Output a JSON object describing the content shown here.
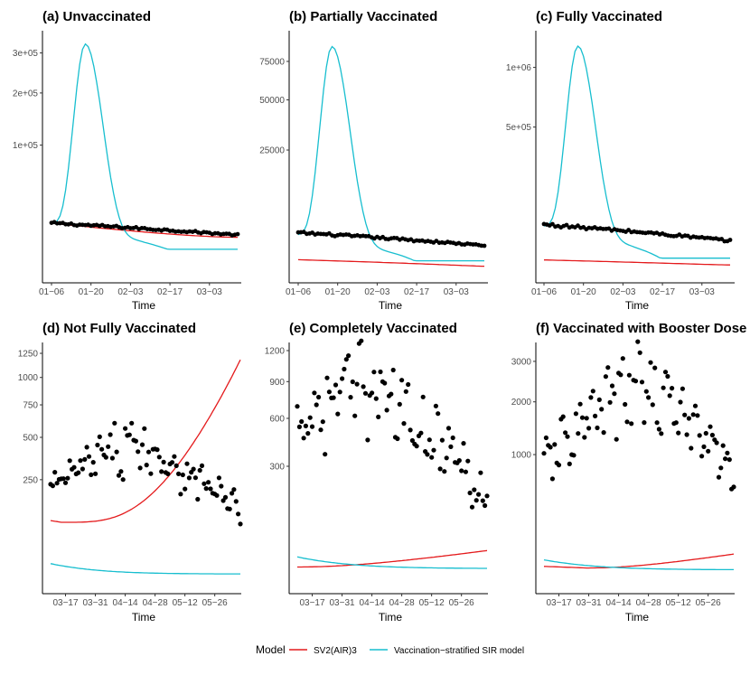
{
  "colors": {
    "sv2": "#e41a1c",
    "sir": "#17becf",
    "observed": "#000000"
  },
  "legend": {
    "title": "Model",
    "entries": [
      {
        "name": "SV2(AIR)3",
        "color": "#e41a1c"
      },
      {
        "name": "Vaccination−stratified SIR model",
        "color": "#17becf"
      }
    ]
  },
  "chart_data": [
    {
      "id": "a",
      "type": "line",
      "title": "(a) Unvaccinated",
      "xlabel": "Time",
      "x_start": "01-06",
      "x_days": 67,
      "x_ticks": [
        {
          "label": "01−06",
          "day": 0
        },
        {
          "label": "01−20",
          "day": 14
        },
        {
          "label": "02−03",
          "day": 28
        },
        {
          "label": "02−17",
          "day": 42
        },
        {
          "label": "03−03",
          "day": 56
        }
      ],
      "y_scale": "sqrt",
      "ylim": [
        0,
        340000
      ],
      "y_ticks": [
        {
          "label": "1e+05",
          "value": 100000
        },
        {
          "label": "2e+05",
          "value": 200000
        },
        {
          "label": "3e+05",
          "value": 300000
        }
      ],
      "observed": {
        "start": 14500,
        "end": 8200,
        "noise": 0.05
      },
      "series": [
        {
          "name": "SV2(AIR)3",
          "key": "sv2",
          "kind": "linear",
          "start": 14500,
          "end": 7200,
          "curve": 1.6
        },
        {
          "name": "Vaccination−stratified SIR model",
          "key": "sir",
          "kind": "peak",
          "base_start": 14000,
          "base_end": 3000,
          "peak_day": 12,
          "peak_value": 325000,
          "rise_sd": 3.2,
          "fall_sd": 4.6
        }
      ]
    },
    {
      "id": "b",
      "type": "line",
      "title": "(b) Partially Vaccinated",
      "xlabel": "Time",
      "x_start": "01-06",
      "x_days": 67,
      "x_ticks": [
        {
          "label": "01−06",
          "day": 0
        },
        {
          "label": "01−20",
          "day": 14
        },
        {
          "label": "02−03",
          "day": 28
        },
        {
          "label": "02−17",
          "day": 42
        },
        {
          "label": "03−03",
          "day": 56
        }
      ],
      "y_scale": "sqrt",
      "ylim": [
        0,
        92000
      ],
      "y_ticks": [
        {
          "label": "25000",
          "value": 25000
        },
        {
          "label": "50000",
          "value": 50000
        },
        {
          "label": "75000",
          "value": 75000
        }
      ],
      "observed": {
        "start": 2500,
        "end": 1100,
        "noise": 0.07
      },
      "series": [
        {
          "name": "SV2(AIR)3",
          "key": "sv2",
          "kind": "linear",
          "start": 220,
          "end": 40,
          "curve": 1.2
        },
        {
          "name": "Vaccination−stratified SIR model",
          "key": "sir",
          "kind": "peak",
          "base_start": 2200,
          "base_end": 180,
          "peak_day": 12,
          "peak_value": 86000,
          "rise_sd": 3.2,
          "fall_sd": 4.6
        }
      ]
    },
    {
      "id": "c",
      "type": "line",
      "title": "(c) Fully Vaccinated",
      "xlabel": "Time",
      "x_start": "01-06",
      "x_days": 67,
      "x_ticks": [
        {
          "label": "01−06",
          "day": 0
        },
        {
          "label": "01−20",
          "day": 14
        },
        {
          "label": "02−03",
          "day": 28
        },
        {
          "label": "02−17",
          "day": 42
        },
        {
          "label": "03−03",
          "day": 56
        }
      ],
      "y_scale": "sqrt",
      "ylim": [
        0,
        1300000
      ],
      "y_ticks": [
        {
          "label": "5e+05",
          "value": 500000
        },
        {
          "label": "1e+06",
          "value": 1000000
        }
      ],
      "observed": {
        "start": 52000,
        "end": 22000,
        "noise": 0.07
      },
      "series": [
        {
          "name": "SV2(AIR)3",
          "key": "sv2",
          "kind": "linear",
          "start": 3000,
          "end": 900,
          "curve": 1.2
        },
        {
          "name": "Vaccination−stratified SIR model",
          "key": "sir",
          "kind": "peak",
          "base_start": 48000,
          "base_end": 4000,
          "peak_day": 12,
          "peak_value": 1220000,
          "rise_sd": 3.2,
          "fall_sd": 4.6
        }
      ]
    },
    {
      "id": "d",
      "type": "line",
      "title": "(d) Not Fully Vaccinated",
      "xlabel": "Time",
      "x_start": "03-10",
      "x_days": 90,
      "x_ticks": [
        {
          "label": "03−17",
          "day": 7
        },
        {
          "label": "03−31",
          "day": 21
        },
        {
          "label": "04−14",
          "day": 35
        },
        {
          "label": "04−28",
          "day": 49
        },
        {
          "label": "05−12",
          "day": 63
        },
        {
          "label": "05−26",
          "day": 77
        }
      ],
      "y_scale": "sqrt",
      "ylim": [
        0,
        1280
      ],
      "y_ticks": [
        {
          "label": "250",
          "value": 250
        },
        {
          "label": "500",
          "value": 500
        },
        {
          "label": "750",
          "value": 750
        },
        {
          "label": "1000",
          "value": 1000
        },
        {
          "label": "1250",
          "value": 1250
        }
      ],
      "observed": {
        "shape": "hump",
        "start": 200,
        "peak": 470,
        "peak_day": 37,
        "end": 120,
        "noise": 0.3
      },
      "series": [
        {
          "name": "SV2(AIR)3",
          "key": "sv2",
          "kind": "growth",
          "min_day": 5,
          "min_value": 85,
          "end": 1180,
          "power": 3.5
        },
        {
          "name": "Vaccination−stratified SIR model",
          "key": "sir",
          "kind": "decay",
          "start": 8,
          "end": 1.5,
          "rate": 0.06
        }
      ]
    },
    {
      "id": "e",
      "type": "line",
      "title": "(e) Completely Vaccinated",
      "xlabel": "Time",
      "x_start": "03-10",
      "x_days": 90,
      "x_ticks": [
        {
          "label": "03−17",
          "day": 7
        },
        {
          "label": "03−31",
          "day": 21
        },
        {
          "label": "04−14",
          "day": 35
        },
        {
          "label": "04−28",
          "day": 49
        },
        {
          "label": "05−12",
          "day": 63
        },
        {
          "label": "05−26",
          "day": 77
        }
      ],
      "y_scale": "sqrt",
      "ylim": [
        0,
        1200
      ],
      "y_ticks": [
        {
          "label": "300",
          "value": 300
        },
        {
          "label": "600",
          "value": 600
        },
        {
          "label": "900",
          "value": 900
        },
        {
          "label": "1200",
          "value": 1200
        }
      ],
      "observed": {
        "shape": "hump",
        "start": 580,
        "peak": 900,
        "peak_day": 32,
        "end": 160,
        "noise": 0.35
      },
      "series": [
        {
          "name": "SV2(AIR)3",
          "key": "sv2",
          "kind": "growth",
          "min_day": 0,
          "min_value": 5,
          "end": 22,
          "power": 2.0
        },
        {
          "name": "Vaccination−stratified SIR model",
          "key": "sir",
          "kind": "decay",
          "start": 14,
          "end": 4,
          "rate": 0.05
        }
      ]
    },
    {
      "id": "f",
      "type": "line",
      "title": "(f) Vaccinated with Booster Dose",
      "xlabel": "Time",
      "x_start": "03-10",
      "x_days": 90,
      "x_ticks": [
        {
          "label": "03−17",
          "day": 7
        },
        {
          "label": "03−31",
          "day": 21
        },
        {
          "label": "04−14",
          "day": 35
        },
        {
          "label": "04−28",
          "day": 49
        },
        {
          "label": "05−12",
          "day": 63
        },
        {
          "label": "05−26",
          "day": 77
        }
      ],
      "y_scale": "sqrt",
      "ylim": [
        0,
        3300
      ],
      "y_ticks": [
        {
          "label": "1000",
          "value": 1000
        },
        {
          "label": "2000",
          "value": 2000
        },
        {
          "label": "3000",
          "value": 3000
        }
      ],
      "observed": {
        "shape": "hump",
        "start": 850,
        "peak": 2500,
        "peak_day": 45,
        "end": 750,
        "noise": 0.32
      },
      "series": [
        {
          "name": "SV2(AIR)3",
          "key": "sv2",
          "kind": "growth",
          "min_day": 20,
          "min_value": 12,
          "end": 48,
          "power": 2.0
        },
        {
          "name": "Vaccination−stratified SIR model",
          "key": "sir",
          "kind": "decay",
          "start": 30,
          "end": 9,
          "rate": 0.05
        }
      ]
    }
  ]
}
